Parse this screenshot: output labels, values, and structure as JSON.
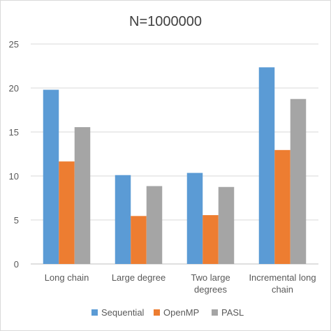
{
  "chart_data": {
    "type": "bar",
    "title": "N=1000000",
    "xlabel": "",
    "ylabel": "",
    "categories": [
      [
        "Long chain"
      ],
      [
        "Large degree"
      ],
      [
        "Two large",
        "degrees"
      ],
      [
        "Incremental long",
        "chain"
      ]
    ],
    "series": [
      {
        "name": "Sequential",
        "color": "#5b9bd5",
        "values": [
          19.8,
          10.1,
          10.35,
          22.35
        ]
      },
      {
        "name": "OpenMP",
        "color": "#ed7d31",
        "values": [
          11.65,
          5.45,
          5.55,
          12.95
        ]
      },
      {
        "name": "PASL",
        "color": "#a5a5a5",
        "values": [
          15.55,
          8.85,
          8.75,
          18.75
        ]
      }
    ],
    "ylim": [
      0,
      25
    ],
    "yticks": [
      "0",
      "5",
      "10",
      "15",
      "20",
      "25"
    ],
    "grid": true,
    "legend": "bottom"
  }
}
